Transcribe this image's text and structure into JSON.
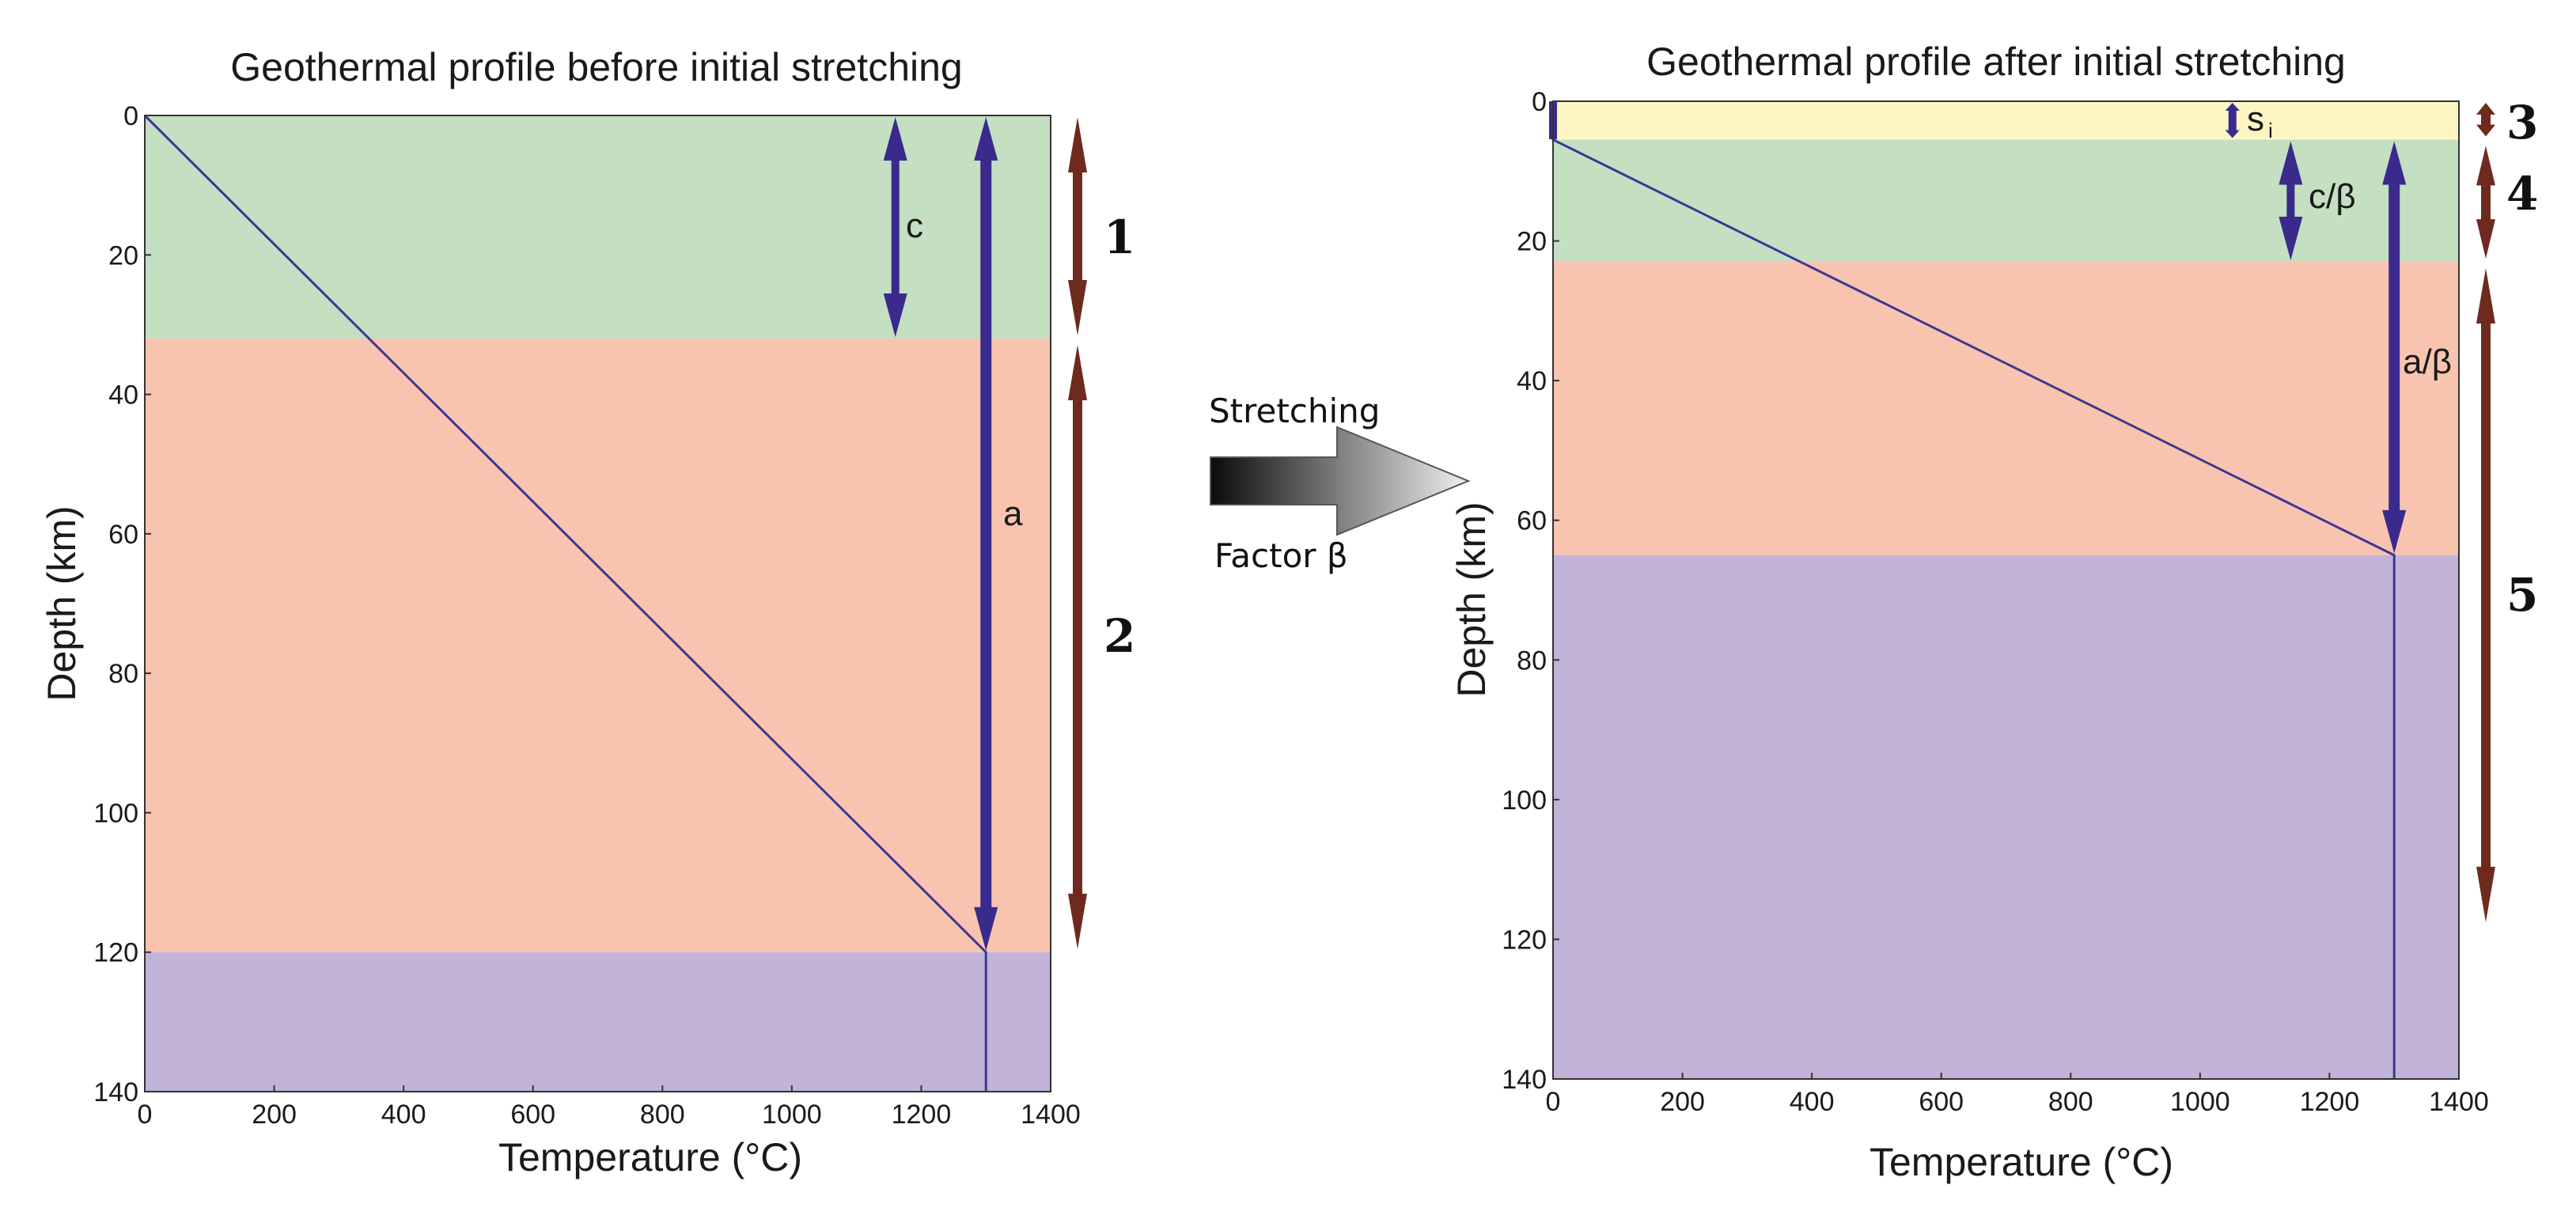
{
  "colors": {
    "sediment": "#fdf6c3",
    "crust": "#c4dfc2",
    "mantle_lith": "#f8c4b0",
    "asthenosphere": "#c1b4d8",
    "geotherm": "#3d3791",
    "arrow_blue": "#3a2a8c",
    "arrow_red": "#6e2a1e",
    "axis": "#333333"
  },
  "left_panel": {
    "title": "Geothermal profile before initial stretching",
    "xlabel": "Temperature (°C)",
    "ylabel": "Depth (km)",
    "xticks": [
      "0",
      "200",
      "400",
      "600",
      "800",
      "1000",
      "1200",
      "1400"
    ],
    "yticks": [
      "0",
      "20",
      "40",
      "60",
      "80",
      "100",
      "120",
      "140"
    ],
    "labels": {
      "c": "c",
      "a": "a"
    },
    "layer_numbers": [
      "1",
      "2"
    ]
  },
  "right_panel": {
    "title": "Geothermal profile after initial stretching",
    "xlabel": "Temperature (°C)",
    "ylabel": "Depth (km)",
    "xticks": [
      "0",
      "200",
      "400",
      "600",
      "800",
      "1000",
      "1200",
      "1400"
    ],
    "yticks": [
      "0",
      "20",
      "40",
      "60",
      "80",
      "100",
      "120",
      "140"
    ],
    "labels": {
      "si": "s",
      "si_sub": "i",
      "c_beta": "c/β",
      "a_beta": "a/β"
    },
    "layer_numbers": [
      "3",
      "4",
      "5"
    ]
  },
  "middle": {
    "top_label": "Stretching",
    "bottom_label": "Factor β"
  },
  "chart_data": [
    {
      "type": "line",
      "title": "Geothermal profile before initial stretching",
      "xlabel": "Temperature (°C)",
      "ylabel": "Depth (km)",
      "xlim": [
        0,
        1400
      ],
      "ylim": [
        140,
        0
      ],
      "layers": [
        {
          "name": "crust",
          "top": 0,
          "bottom": 32,
          "color": "#c4dfc2"
        },
        {
          "name": "mantle-lithosphere",
          "top": 32,
          "bottom": 120,
          "color": "#f8c4b0"
        },
        {
          "name": "asthenosphere",
          "top": 120,
          "bottom": 140,
          "color": "#c1b4d8"
        }
      ],
      "series": [
        {
          "name": "geotherm",
          "x": [
            0,
            1300,
            1300
          ],
          "y": [
            0,
            120,
            140
          ]
        }
      ],
      "markers": [
        {
          "label": "c",
          "temperature": 1160,
          "top": 0,
          "bottom": 32
        },
        {
          "label": "a",
          "temperature": 1300,
          "top": 0,
          "bottom": 120
        }
      ],
      "brackets": [
        {
          "label": "1",
          "top": 0,
          "bottom": 32
        },
        {
          "label": "2",
          "top": 32,
          "bottom": 120
        }
      ]
    },
    {
      "type": "line",
      "title": "Geothermal profile after initial stretching",
      "xlabel": "Temperature (°C)",
      "ylabel": "Depth (km)",
      "xlim": [
        0,
        1400
      ],
      "ylim": [
        140,
        0
      ],
      "layers": [
        {
          "name": "sediment",
          "top": 0,
          "bottom": 5.5,
          "color": "#fdf6c3"
        },
        {
          "name": "crust",
          "top": 5.5,
          "bottom": 23,
          "color": "#c4dfc2"
        },
        {
          "name": "mantle-lithosphere",
          "top": 23,
          "bottom": 65,
          "color": "#f8c4b0"
        },
        {
          "name": "asthenosphere",
          "top": 65,
          "bottom": 140,
          "color": "#c1b4d8"
        }
      ],
      "series": [
        {
          "name": "geotherm",
          "x": [
            0,
            0,
            1300,
            1300
          ],
          "y": [
            0,
            5.5,
            65,
            140
          ]
        }
      ],
      "markers": [
        {
          "label": "si",
          "temperature": 1050,
          "top": 0,
          "bottom": 5.5
        },
        {
          "label": "c/β",
          "temperature": 1140,
          "top": 5.5,
          "bottom": 23
        },
        {
          "label": "a/β",
          "temperature": 1300,
          "top": 5.5,
          "bottom": 65
        }
      ],
      "brackets": [
        {
          "label": "3",
          "top": 0,
          "bottom": 5.5
        },
        {
          "label": "4",
          "top": 5.5,
          "bottom": 23
        },
        {
          "label": "5",
          "top": 23,
          "bottom": 118
        }
      ]
    }
  ]
}
